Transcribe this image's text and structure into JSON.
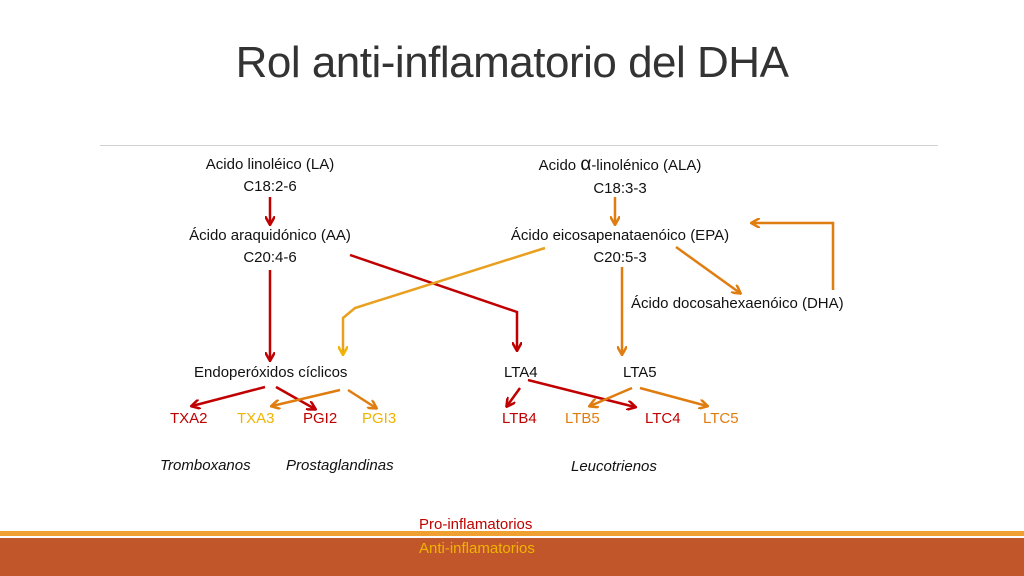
{
  "slide": {
    "title": "Rol anti-inflamatorio del DHA"
  },
  "nodes": {
    "la_name": "Acido linoléico (LA)",
    "la_formula": "C18:2-6",
    "ala_prefix": "Acido",
    "ala_alpha": "α",
    "ala_suffix": "-linolénico (ALA)",
    "ala_formula": "C18:3-3",
    "aa_name": "Ácido araquidónico (AA)",
    "aa_formula": "C20:4-6",
    "epa_name": "Ácido eicosapenataenóico (EPA)",
    "epa_formula": "C20:5-3",
    "dha_name": "Ácido docosahexaenóico (DHA)",
    "endo": "Endoperóxidos  cíclicos",
    "lta4": "LTA4",
    "lta5": "LTA5"
  },
  "products": {
    "txa2": "TXA2",
    "txa3": "TXA3",
    "pgi2": "PGI2",
    "pgi3": "PGI3",
    "ltb4": "LTB4",
    "ltb5": "LTB5",
    "ltc4": "LTC4",
    "ltc5": "LTC5"
  },
  "groups": {
    "tromboxanos": "Tromboxanos",
    "prostaglandinas": "Prostaglandinas",
    "leucotrienos": "Leucotrienos"
  },
  "legend": {
    "pro": "Pro-inflamatorios",
    "anti": "Anti-inflamatorios"
  },
  "colors": {
    "pro_inflammatory": "#c00000",
    "anti_inflammatory": "#f0b400",
    "omega3_pathway": "#e07d10",
    "footer_bar": "#c0562a"
  }
}
